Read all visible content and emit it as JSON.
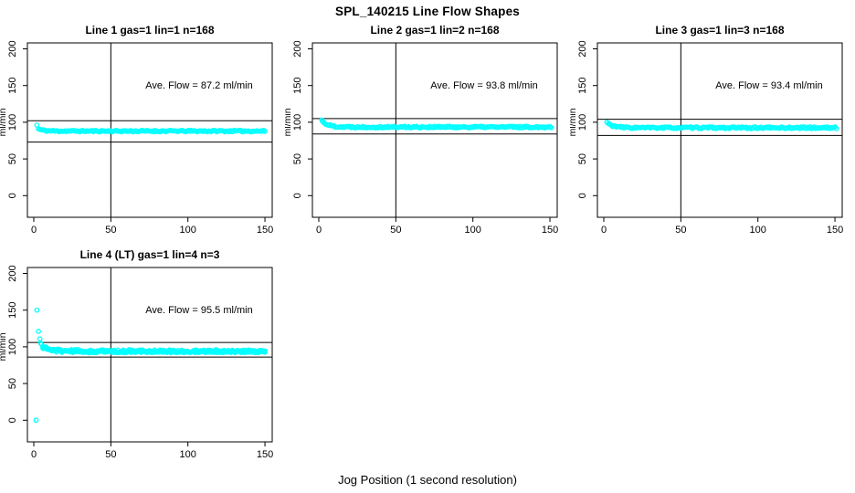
{
  "header": {
    "title": "SPL_140215  Line Flow Shapes"
  },
  "footer": {
    "xlabel": "Jog Position (1 second resolution)"
  },
  "colors": {
    "point": "#00ffff",
    "line": "#000000",
    "background": "#ffffff"
  },
  "axes": {
    "x_ticks": [
      0,
      50,
      100,
      150
    ],
    "y_ticks": [
      0,
      50,
      100,
      150,
      200
    ],
    "ylabel": "ml/min",
    "xlim": [
      0,
      155
    ],
    "ylim": [
      0,
      200
    ],
    "grid": false
  },
  "chart_data": [
    {
      "type": "scatter",
      "id": "line-1",
      "title": "Line 1 gas=1 lin=1 n=168",
      "annotation": "Ave. Flow =  87.2  ml/min",
      "ave_flow_ml_min": 87.2,
      "gas": 1,
      "lin": 1,
      "n": 168,
      "ref_lines_y": [
        102,
        73
      ],
      "vline_x": 50,
      "outlier_points": [
        [
          2,
          96
        ]
      ],
      "bands": [
        {
          "x_start": 3,
          "x_end": 150,
          "n": 170,
          "y_start": 91,
          "y_settle": 88,
          "tau": 3,
          "noise": 1.0,
          "seed": 11
        }
      ]
    },
    {
      "type": "scatter",
      "id": "line-2",
      "title": "Line 2 gas=1 lin=2 n=168",
      "annotation": "Ave. Flow =  93.8  ml/min",
      "ave_flow_ml_min": 93.8,
      "gas": 1,
      "lin": 2,
      "n": 168,
      "ref_lines_y": [
        105,
        84
      ],
      "vline_x": 50,
      "outlier_points": [
        [
          2,
          103
        ],
        [
          2.5,
          101
        ]
      ],
      "bands": [
        {
          "x_start": 3,
          "x_end": 151,
          "n": 175,
          "y_start": 100,
          "y_settle": 93.5,
          "tau": 4,
          "noise": 1.2,
          "seed": 22
        }
      ]
    },
    {
      "type": "scatter",
      "id": "line-3",
      "title": "Line 3 gas=1 lin=3 n=168",
      "annotation": "Ave. Flow =  93.4  ml/min",
      "ave_flow_ml_min": 93.4,
      "gas": 1,
      "lin": 3,
      "n": 168,
      "ref_lines_y": [
        104,
        82
      ],
      "vline_x": 50,
      "outlier_points": [
        [
          2,
          100
        ]
      ],
      "bands": [
        {
          "x_start": 3,
          "x_end": 151,
          "n": 175,
          "y_start": 98,
          "y_settle": 92.5,
          "tau": 4,
          "noise": 1.2,
          "seed": 33
        }
      ]
    },
    {
      "type": "scatter",
      "id": "line-4",
      "title": "Line 4 (LT) gas=1 lin=4 n=3",
      "annotation": "Ave. Flow =  95.5  ml/min",
      "ave_flow_ml_min": 95.5,
      "gas": 1,
      "lin": 4,
      "n": 3,
      "ref_lines_y": [
        106,
        86
      ],
      "vline_x": 50,
      "outlier_points": [
        [
          1.5,
          0
        ],
        [
          2,
          150
        ],
        [
          3,
          121
        ],
        [
          4,
          111
        ],
        [
          4.5,
          105
        ]
      ],
      "bands": [
        {
          "x_start": 5,
          "x_end": 150,
          "n": 165,
          "y_start": 102,
          "y_settle": 94,
          "tau": 5,
          "noise": 2.2,
          "seed": 44
        },
        {
          "x_start": 6,
          "x_end": 150,
          "n": 150,
          "y_start": 99,
          "y_settle": 93.5,
          "tau": 6,
          "noise": 1.3,
          "seed": 45
        }
      ]
    }
  ]
}
